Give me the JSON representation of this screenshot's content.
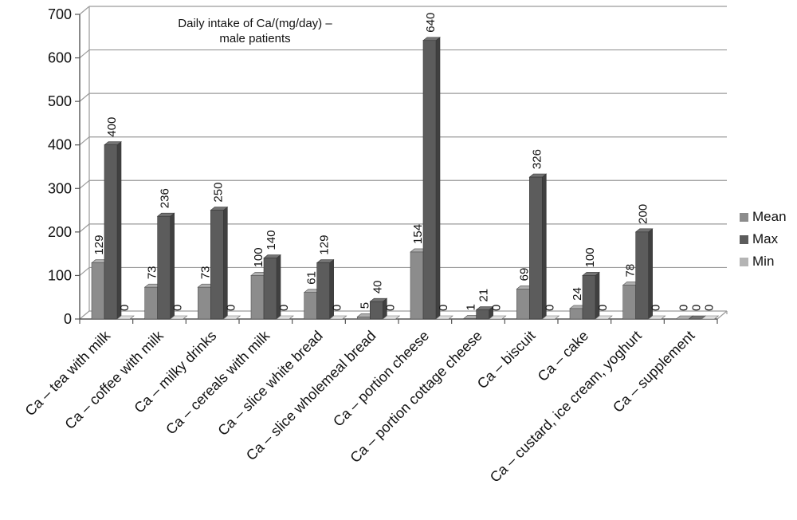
{
  "chart_data": {
    "type": "bar",
    "title": "Daily intake of Ca/(mg/day) – male patients",
    "title_lines": [
      "Daily intake of Ca/(mg/day) –",
      "male patients"
    ],
    "xlabel": "",
    "ylabel": "",
    "ylim": [
      0,
      700
    ],
    "yticks": [
      "0",
      "100",
      "200",
      "300",
      "400",
      "500",
      "600",
      "700"
    ],
    "grid": true,
    "legend_position": "right",
    "categories": [
      "Ca – tea with milk",
      "Ca – coffee with milk",
      "Ca – milky drinks",
      "Ca – cereals with milk",
      "Ca – slice white bread",
      "Ca – slice wholemeal bread",
      "Ca – portion cheese",
      "Ca – portion cottage cheese",
      "Ca – biscuit",
      "Ca – cake",
      "Ca – custard, ice cream, yoghurt",
      "Ca – supplement"
    ],
    "series": [
      {
        "name": "Mean",
        "color": "#8c8c8c",
        "values": [
          129,
          73,
          73,
          100,
          61,
          5,
          154,
          1,
          69,
          24,
          78,
          0
        ],
        "labels": [
          "129",
          "73",
          "73",
          "100",
          "61",
          "5",
          "154",
          "1",
          "69",
          "24",
          "78",
          "0"
        ]
      },
      {
        "name": "Max",
        "color": "#5c5c5c",
        "values": [
          400,
          236,
          250,
          140,
          129,
          40,
          640,
          21,
          326,
          100,
          200,
          0
        ],
        "labels": [
          "400",
          "236",
          "250",
          "140",
          "129",
          "40",
          "640",
          "21",
          "326",
          "100",
          "200",
          "0"
        ]
      },
      {
        "name": "Min",
        "color": "#b4b4b4",
        "values": [
          0,
          0,
          0,
          0,
          0,
          0,
          0,
          0,
          0,
          0,
          0,
          0
        ],
        "labels": [
          "0",
          "0",
          "0",
          "0",
          "0",
          "0",
          "0",
          "0",
          "0",
          "0",
          "0",
          "0"
        ]
      }
    ]
  }
}
